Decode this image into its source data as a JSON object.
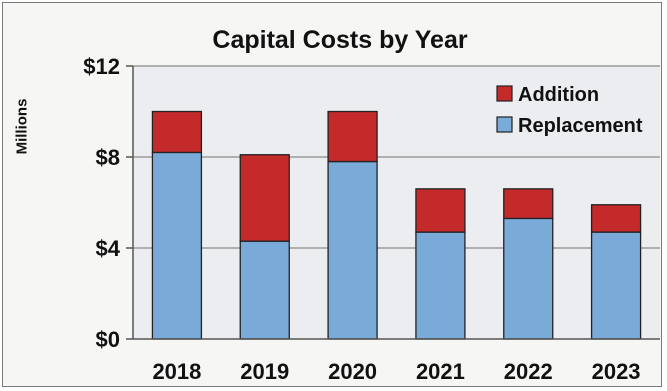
{
  "chart_data": {
    "type": "bar",
    "stacked": true,
    "title": "Capital Costs by Year",
    "xlabel": "",
    "ylabel": "Millions",
    "categories": [
      "2018",
      "2019",
      "2020",
      "2021",
      "2022",
      "2023"
    ],
    "series": [
      {
        "name": "Replacement",
        "color": "#7aaad8",
        "values": [
          8.2,
          4.3,
          7.8,
          4.7,
          5.3,
          4.7
        ]
      },
      {
        "name": "Addition",
        "color": "#c42a2a",
        "values": [
          1.8,
          3.8,
          2.2,
          1.9,
          1.3,
          1.2
        ]
      }
    ],
    "ylim": [
      0,
      12
    ],
    "yticks": [
      0,
      4,
      8,
      12
    ],
    "ytick_labels": [
      "$0",
      "$4",
      "$8",
      "$12"
    ],
    "grid": true,
    "legend": {
      "placement": "top-right",
      "order": [
        "Addition",
        "Replacement"
      ]
    }
  }
}
